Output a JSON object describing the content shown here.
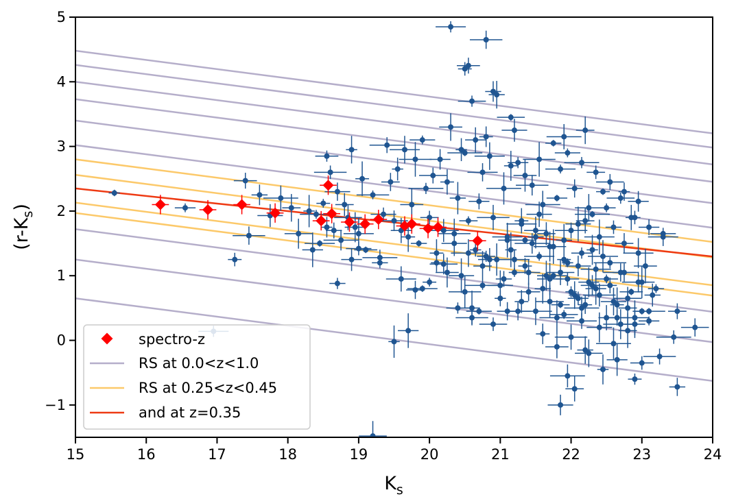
{
  "chart_data": {
    "type": "scatter",
    "title": "",
    "xlabel": "K",
    "xlabel_sub": "s",
    "ylabel_pre": "(r-K",
    "ylabel_sub": "s",
    "ylabel_post": ")",
    "xlim": [
      15,
      24
    ],
    "ylim": [
      -1.5,
      5
    ],
    "xticks": [
      15,
      16,
      17,
      18,
      19,
      20,
      21,
      22,
      23,
      24
    ],
    "yticks": [
      -1,
      0,
      1,
      2,
      3,
      4,
      5
    ],
    "ytick_labels": [
      "−1",
      "0",
      "1",
      "2",
      "3",
      "4",
      "5"
    ],
    "grid": false,
    "legend_position": "lower-left",
    "colors": {
      "galaxies": "#1f5591",
      "spectro": "#ff0000",
      "rs_all": "#b5aeca",
      "rs_window": "#fcc96a",
      "rs_best": "#ee3a13"
    },
    "series": [
      {
        "name": "spectro-z",
        "kind": "points",
        "marker": "diamond",
        "x": [
          16.2,
          16.87,
          17.35,
          17.82,
          18.47,
          18.57,
          18.62,
          18.87,
          19.09,
          19.28,
          19.65,
          19.75,
          19.98,
          20.12,
          20.68
        ],
        "y": [
          2.1,
          2.02,
          2.1,
          1.97,
          1.85,
          2.4,
          1.96,
          1.83,
          1.8,
          1.87,
          1.77,
          1.8,
          1.73,
          1.75,
          1.54
        ]
      },
      {
        "name": "RS at 0.0<z<1.0",
        "kind": "lines",
        "slope": -0.142,
        "intercepts": [
          4.48,
          4.26,
          4.0,
          3.73,
          3.4,
          3.02,
          1.72,
          1.25,
          0.65
        ]
      },
      {
        "name": "RS at 0.25<z<0.45",
        "kind": "lines",
        "slope": -0.142,
        "intercepts": [
          2.8,
          2.56,
          2.13,
          1.97
        ]
      },
      {
        "name": "and at z=0.35",
        "kind": "lines",
        "slope": -0.117,
        "intercepts": [
          2.35
        ]
      }
    ],
    "galaxies": {
      "x": [
        15.55,
        16.55,
        16.95,
        17.25,
        17.4,
        17.45,
        17.6,
        17.75,
        17.9,
        18.05,
        18.15,
        18.3,
        18.35,
        18.45,
        18.5,
        18.55,
        18.6,
        18.65,
        18.7,
        18.75,
        18.8,
        18.85,
        18.9,
        18.95,
        19.0,
        19.05,
        19.1,
        19.2,
        19.3,
        19.35,
        19.4,
        19.45,
        19.5,
        19.55,
        19.6,
        19.65,
        19.7,
        19.75,
        19.8,
        19.85,
        19.9,
        19.95,
        20.0,
        20.05,
        20.1,
        20.15,
        20.2,
        20.25,
        20.3,
        20.35,
        20.4,
        20.45,
        20.5,
        20.55,
        20.6,
        20.65,
        20.7,
        20.75,
        20.8,
        20.85,
        20.9,
        20.95,
        21.0,
        21.05,
        21.1,
        21.15,
        21.2,
        21.25,
        21.3,
        21.35,
        21.4,
        21.45,
        21.5,
        21.55,
        21.6,
        21.65,
        21.7,
        21.75,
        21.8,
        21.85,
        21.9,
        21.95,
        22.0,
        22.05,
        22.1,
        22.15,
        22.2,
        22.25,
        22.3,
        22.35,
        22.4,
        22.45,
        22.5,
        22.55,
        22.6,
        22.65,
        22.7,
        22.75,
        22.8,
        22.85,
        22.9,
        22.95,
        23.0,
        23.05,
        23.1,
        23.2,
        23.3,
        23.45,
        23.5,
        23.75,
        18.55,
        18.9,
        19.6,
        20.1,
        20.25,
        20.5,
        20.6,
        20.7,
        20.75,
        20.8,
        20.9,
        21.0,
        21.1,
        21.2,
        21.3,
        21.4,
        21.5,
        21.6,
        21.7,
        21.8,
        21.85,
        21.9,
        22.0,
        22.1,
        22.15,
        22.2,
        22.3,
        22.4,
        22.5,
        22.6,
        22.7,
        22.8,
        22.9,
        23.0,
        23.1,
        20.3,
        20.5,
        20.55,
        20.8,
        20.9,
        21.2,
        21.9,
        22.2,
        19.2,
        19.5,
        19.7,
        19.9,
        20.0,
        20.4,
        20.6,
        21.05,
        21.25,
        21.45,
        21.65,
        21.85,
        22.05,
        22.25,
        22.45,
        22.65,
        22.85,
        18.4,
        18.7,
        19.0,
        19.3,
        19.8,
        20.2,
        20.45,
        20.65,
        20.85,
        21.15,
        21.35,
        21.55,
        21.75,
        21.95,
        22.15,
        22.35,
        22.55,
        22.75,
        22.95,
        21.1,
        21.3,
        21.5,
        21.7,
        21.9,
        22.1,
        22.3,
        22.5,
        22.7,
        22.9,
        23.1,
        23.3,
        21.6,
        21.8,
        22.0,
        22.2,
        22.4,
        22.6,
        22.8,
        21.75,
        21.95,
        22.15,
        22.35,
        22.55,
        22.75,
        22.95,
        23.15,
        20.35,
        20.55,
        20.75,
        20.95,
        21.15,
        21.35,
        21.55,
        22.9,
        23.0,
        23.25,
        23.5,
        21.85,
        21.95,
        22.05,
        22.25,
        22.45,
        22.65
      ],
      "y": [
        2.28,
        2.05,
        0.14,
        1.25,
        2.47,
        1.62,
        2.25,
        1.93,
        2.2,
        2.05,
        1.65,
        2.0,
        1.4,
        1.5,
        2.12,
        2.85,
        2.6,
        1.7,
        2.3,
        1.55,
        2.1,
        1.9,
        2.95,
        1.75,
        1.65,
        2.5,
        1.4,
        2.25,
        1.2,
        1.95,
        3.02,
        2.45,
        1.85,
        2.65,
        1.7,
        2.95,
        1.6,
        2.1,
        2.8,
        1.5,
        3.1,
        2.35,
        1.9,
        2.55,
        1.2,
        2.8,
        1.7,
        2.45,
        3.3,
        1.65,
        2.2,
        1.0,
        2.9,
        1.85,
        3.7,
        1.4,
        2.15,
        2.6,
        3.15,
        1.25,
        1.9,
        3.8,
        0.85,
        2.35,
        1.55,
        3.45,
        1.05,
        2.75,
        1.8,
        1.15,
        0.75,
        2.4,
        1.6,
        1.95,
        2.1,
        1.0,
        0.6,
        1.45,
        2.2,
        2.65,
        1.25,
        0.95,
        1.7,
        2.35,
        1.15,
        0.5,
        1.85,
        2.05,
        1.4,
        0.8,
        1.6,
        2.3,
        0.95,
        1.2,
        1.75,
        0.35,
        1.05,
        1.5,
        0.65,
        1.9,
        0.25,
        1.35,
        0.9,
        1.15,
        0.45,
        0.8,
        1.65,
        0.05,
        0.45,
        0.2,
        1.75,
        1.25,
        0.95,
        1.35,
        1.05,
        0.75,
        0.5,
        0.45,
        0.85,
        1.3,
        0.25,
        0.65,
        0.45,
        1.25,
        0.6,
        1.05,
        0.45,
        0.8,
        0.95,
        0.35,
        0.55,
        0.4,
        0.75,
        0.65,
        0.3,
        0.55,
        0.85,
        0.7,
        0.35,
        0.6,
        0.25,
        0.5,
        0.35,
        0.45,
        0.3,
        4.85,
        4.2,
        4.25,
        4.65,
        3.85,
        3.25,
        3.15,
        3.25,
        -1.48,
        -0.02,
        0.15,
        0.8,
        0.9,
        0.5,
        0.35,
        0.95,
        0.45,
        1.5,
        1.65,
        1.05,
        0.7,
        0.9,
        1.3,
        0.55,
        0.75,
        1.95,
        0.88,
        1.42,
        1.28,
        0.78,
        1.18,
        2.95,
        3.1,
        2.85,
        2.7,
        2.55,
        2.8,
        3.05,
        2.9,
        2.75,
        2.6,
        2.45,
        2.3,
        2.15,
        1.6,
        1.85,
        1.7,
        1.45,
        1.55,
        1.8,
        1.95,
        2.05,
        2.2,
        1.9,
        1.75,
        1.6,
        0.1,
        -0.1,
        0.05,
        -0.15,
        0.2,
        -0.05,
        0.15,
        1.0,
        1.2,
        1.35,
        1.1,
        0.85,
        1.05,
        0.9,
        0.7,
        1.5,
        1.35,
        1.15,
        1.25,
        1.4,
        1.55,
        1.3,
        -0.6,
        -0.35,
        -0.25,
        -0.72,
        -1.0,
        -0.55,
        -0.75,
        -0.2,
        -0.45,
        -0.3
      ]
    }
  }
}
